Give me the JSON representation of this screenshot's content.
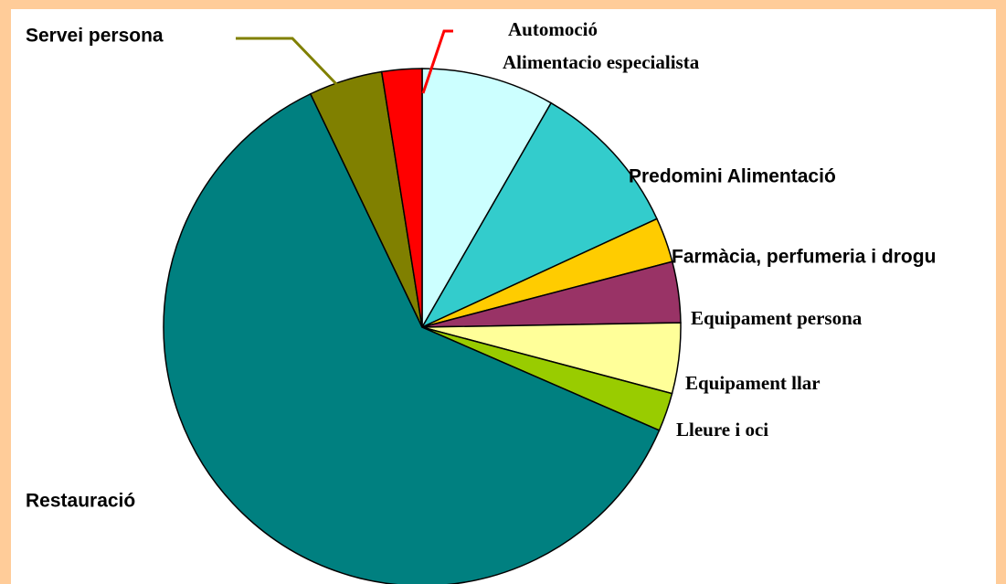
{
  "chart_data": {
    "type": "pie",
    "categories": [
      "Alimentacio especialista",
      "Predomini Alimentació",
      "Farmàcia, perfumeria i drogu",
      "Equipament persona",
      "Equipament llar",
      "Lleure i oci",
      "Restauració",
      "Servei persona",
      "Automoció"
    ],
    "values": [
      8.3,
      9.8,
      2.8,
      3.8,
      4.4,
      2.4,
      61.3,
      4.6,
      2.5
    ],
    "colors": [
      "#ccffff",
      "#33cccc",
      "#ffcc00",
      "#993366",
      "#ffff99",
      "#99cc00",
      "#008080",
      "#808000",
      "#ff0000"
    ]
  }
}
